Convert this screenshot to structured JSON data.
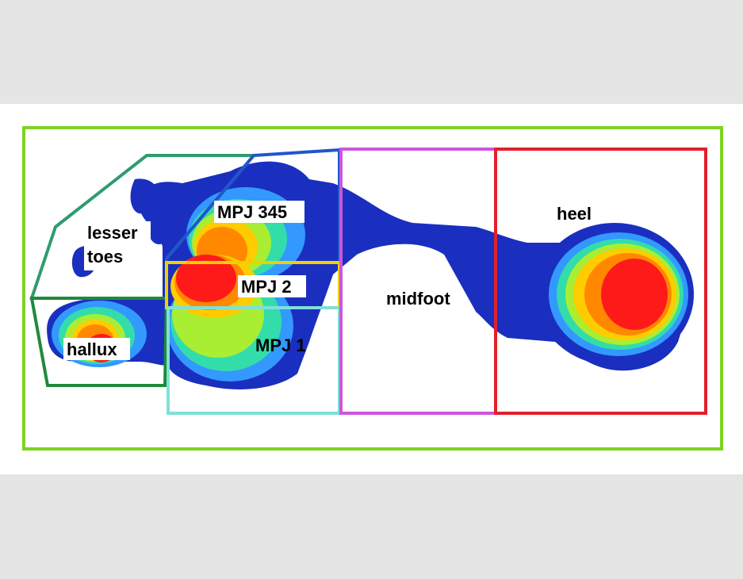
{
  "figure": {
    "labels": {
      "lesser_line1": "lesser",
      "lesser_line2": "toes",
      "hallux": "hallux",
      "mpj345": "MPJ 345",
      "mpj2": "MPJ 2",
      "mpj1": "MPJ 1",
      "midfoot": "midfoot",
      "heel": "heel"
    },
    "colors": {
      "page_background": "#e5e5e5",
      "panel_background": "#ffffff",
      "outer_box": "#7ed321",
      "lesser_toes_box": "#2e9c6e",
      "hallux_box": "#1f8a3a",
      "mpj345_box": "#2255cc",
      "mpj2_box": "#f0d000",
      "mpj1_box": "#7fe0d8",
      "midfoot_box": "#cc55dd",
      "heel_box": "#e2202a",
      "pressure_low": "#1a2fbf",
      "pressure_mid_low": "#3399ff",
      "pressure_mid": "#33ddaa",
      "pressure_mid_high": "#aaee33",
      "pressure_high": "#ffcc00",
      "pressure_higher": "#ff8800",
      "pressure_peak": "#ff1a1a"
    }
  }
}
